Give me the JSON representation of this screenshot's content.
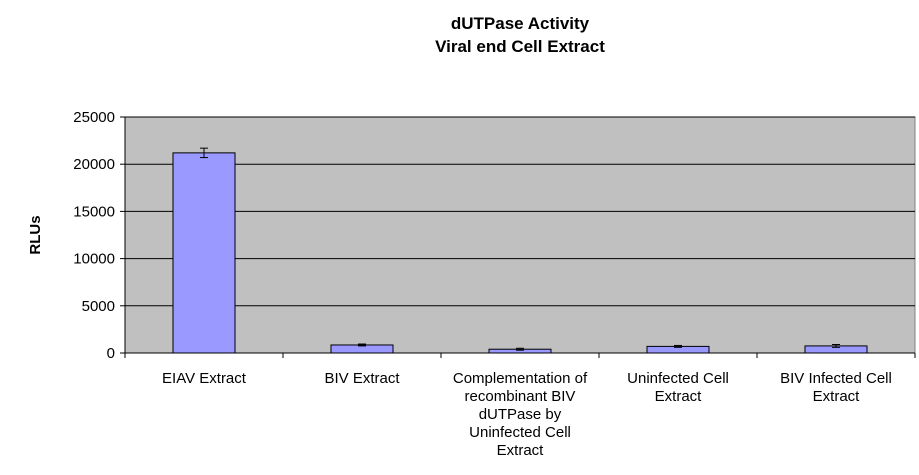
{
  "chart_data": {
    "type": "bar",
    "title": "dUTPase Activity",
    "subtitle": "Viral end Cell Extract",
    "ylabel": "RLUs",
    "categories": [
      "EIAV Extract",
      "BIV Extract",
      "Complementation of recombinant BIV dUTPase by Uninfected Cell Extract",
      "Uninfected Cell Extract",
      "BIV Infected Cell Extract"
    ],
    "values": [
      21200,
      850,
      400,
      700,
      750
    ],
    "errors": [
      500,
      100,
      100,
      100,
      150
    ],
    "color": "#9999ff",
    "ylim": [
      0,
      25000
    ],
    "yticks": [
      0,
      5000,
      10000,
      15000,
      20000,
      25000
    ],
    "grid": true
  }
}
